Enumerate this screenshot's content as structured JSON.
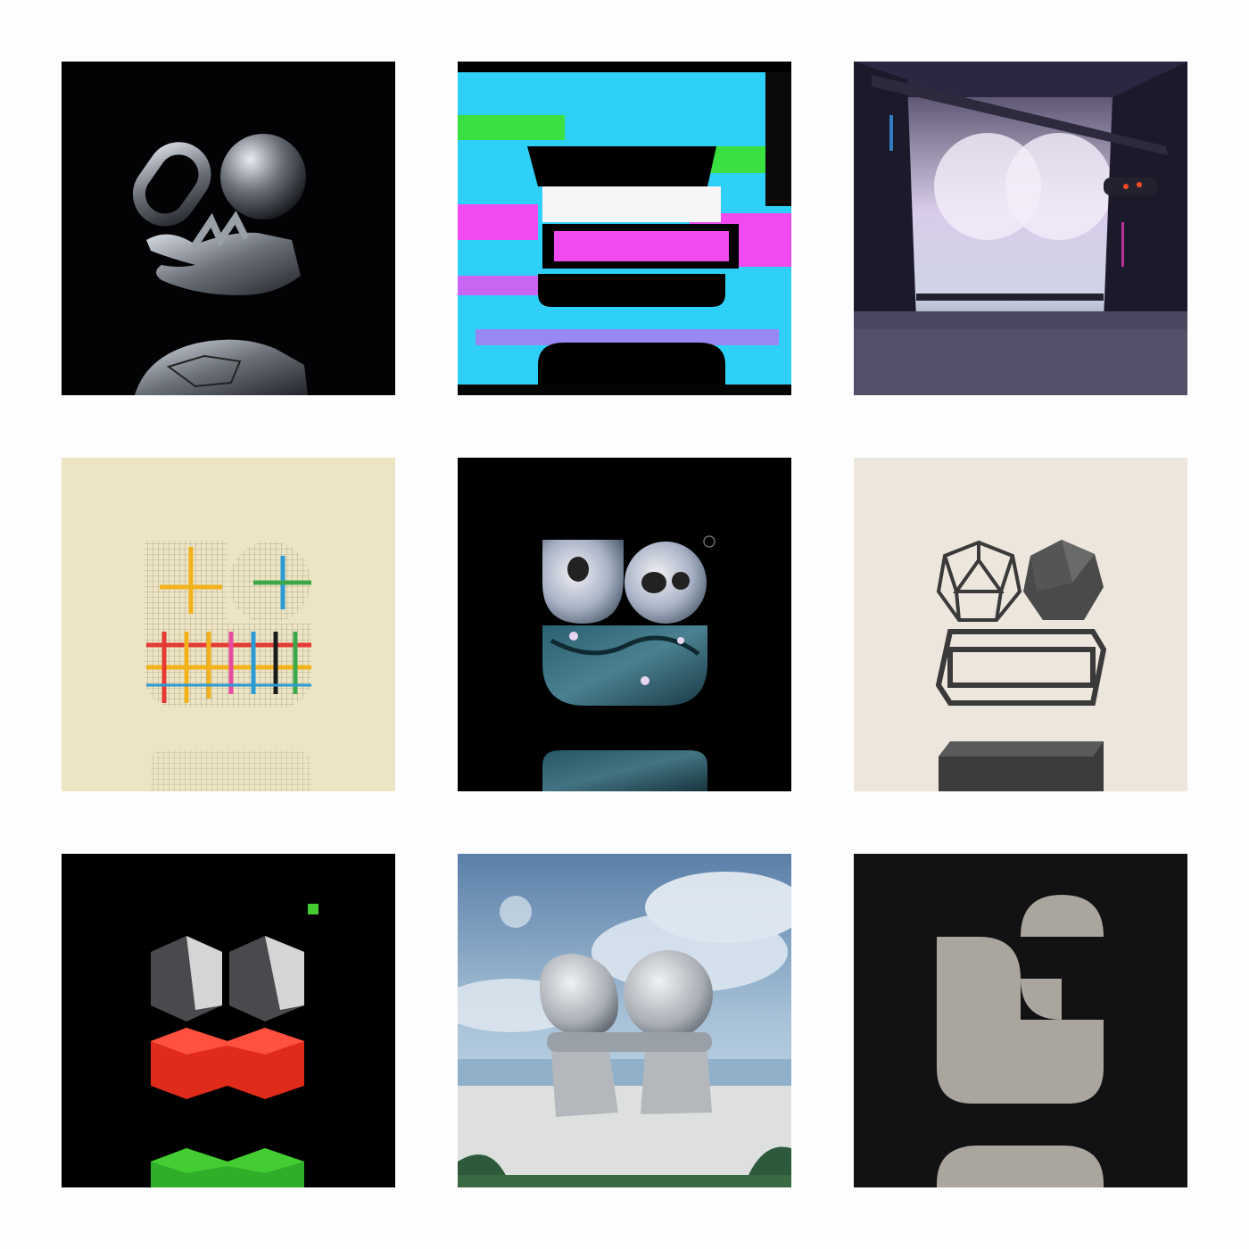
{
  "gallery": {
    "background": "#fdfdfd",
    "tiles": [
      {
        "id": "chrome-hand-chain-sphere",
        "bg": "#030305"
      },
      {
        "id": "glitch-letter",
        "bg": "#000000",
        "colors": [
          "#2fd0f8",
          "#f04af0",
          "#39e040"
        ]
      },
      {
        "id": "cyberpunk-city",
        "bg": "#2a2840"
      },
      {
        "id": "color-grid-weave",
        "bg": "#ece4c2",
        "colors": [
          "#f2b21c",
          "#e53935",
          "#2c9bd4",
          "#3da84a",
          "#1c1c1c"
        ]
      },
      {
        "id": "skulls-blossom",
        "bg": "#000000"
      },
      {
        "id": "polyhedra-sketch",
        "bg": "#ede6dc"
      },
      {
        "id": "lego-blocks",
        "bg": "#000000",
        "colors": [
          "#4a4a4e",
          "#e02a1a",
          "#2fae2a",
          "#44cc33"
        ]
      },
      {
        "id": "stone-cairn-sky",
        "bg": "#6f93b8"
      },
      {
        "id": "flat-geometric",
        "bg": "#121214",
        "colors": [
          "#aaa69d"
        ]
      }
    ]
  }
}
